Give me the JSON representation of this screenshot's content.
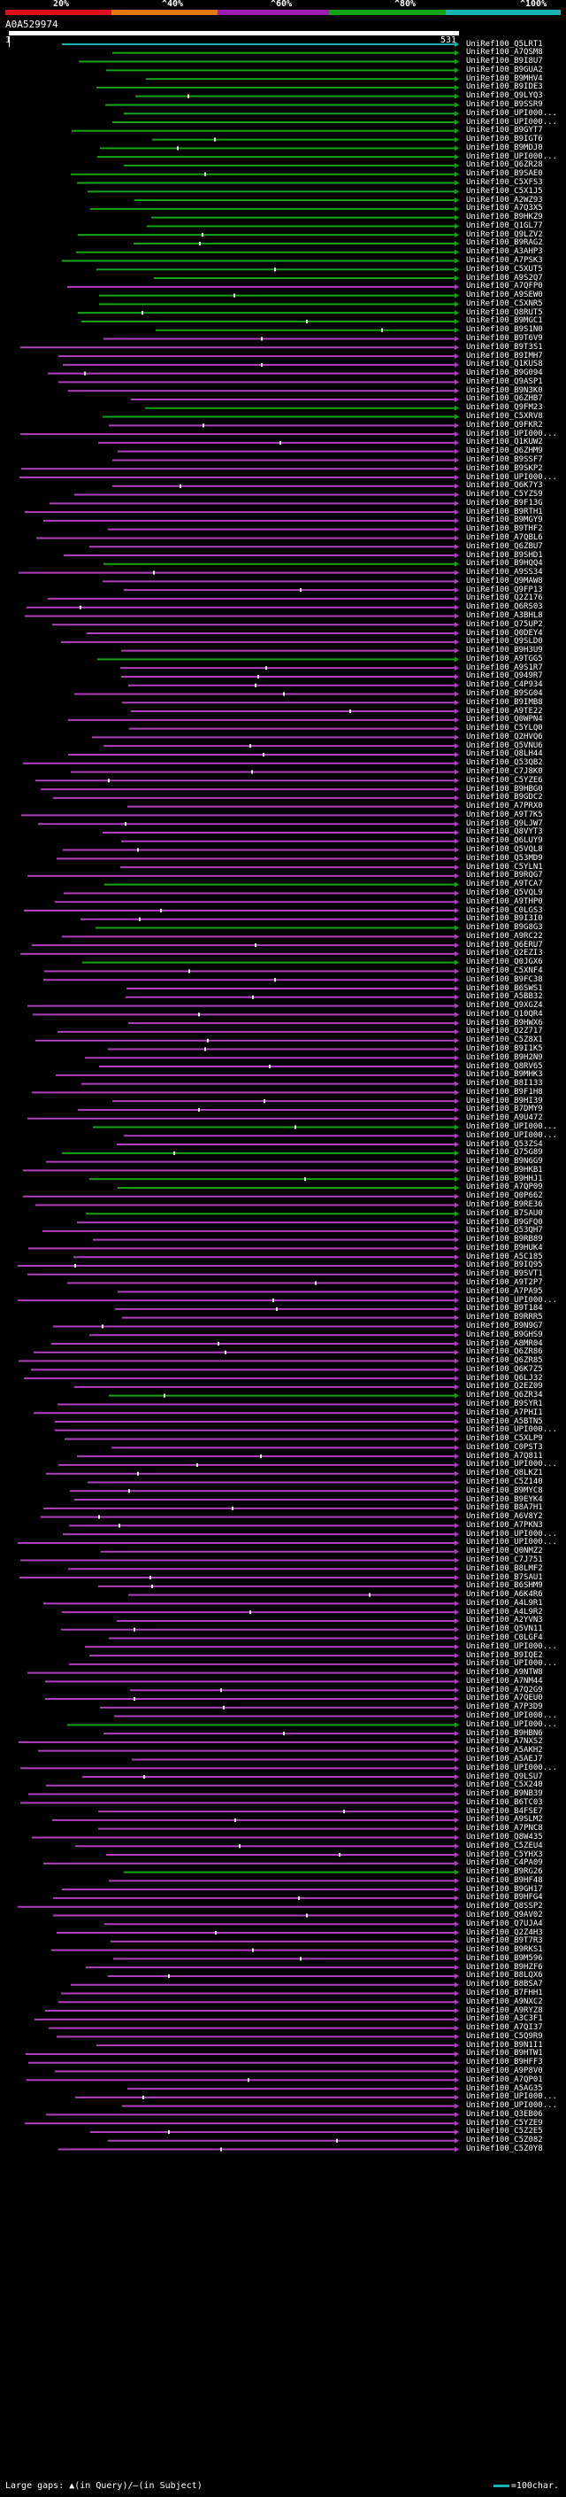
{
  "scale": {
    "labels": [
      "20%",
      "^40%",
      "^60%",
      "^80%",
      "^100%"
    ],
    "colors": [
      "#e0101a",
      "#e07a10",
      "#9a1fb0",
      "#13a313",
      "#19b3b3"
    ]
  },
  "query": {
    "id": "A0A529974",
    "start": "1",
    "end": "531"
  },
  "footer": {
    "text": "Large gaps: ▲(in Query)/—(in Subject)",
    "legend": "=100char."
  },
  "colors": {
    "identity_80": "#13a313",
    "identity_60": "#9a1fb0",
    "identity_100": "#19b3b3",
    "gap": "#ffffff"
  },
  "hits": [
    {
      "label": "UniRef100_Q5LRT1",
      "color": "cyan"
    },
    {
      "label": "UniRef100_A7QSM8",
      "color": "green"
    },
    {
      "label": "UniRef100_B9I8U7",
      "color": "green"
    },
    {
      "label": "UniRef100_B9GUA2",
      "color": "green"
    },
    {
      "label": "UniRef100_B9MHV4",
      "color": "green"
    },
    {
      "label": "UniRef100_B9IDE3",
      "color": "green"
    },
    {
      "label": "UniRef100_Q9LYQ3",
      "color": "green"
    },
    {
      "label": "UniRef100_B9SSR9",
      "color": "green"
    },
    {
      "label": "UniRef100_UPI000...",
      "color": "green"
    },
    {
      "label": "UniRef100_UPI000...",
      "color": "green"
    },
    {
      "label": "UniRef100_B9GYT7",
      "color": "green"
    },
    {
      "label": "UniRef100_B9IGT6",
      "color": "green"
    },
    {
      "label": "UniRef100_B9MDJ0",
      "color": "green"
    },
    {
      "label": "UniRef100_UPI000...",
      "color": "green"
    },
    {
      "label": "UniRef100_Q6ZR28",
      "color": "green"
    },
    {
      "label": "UniRef100_B9SAE0",
      "color": "green"
    },
    {
      "label": "UniRef100_C5XFS3",
      "color": "green"
    },
    {
      "label": "UniRef100_C5X1J5",
      "color": "green"
    },
    {
      "label": "UniRef100_A2WZ93",
      "color": "green"
    },
    {
      "label": "UniRef100_A7Q3X5",
      "color": "green"
    },
    {
      "label": "UniRef100_B9HKZ9",
      "color": "green"
    },
    {
      "label": "UniRef100_Q1GL77",
      "color": "green"
    },
    {
      "label": "UniRef100_Q9LZV2",
      "color": "green"
    },
    {
      "label": "UniRef100_B9RAG2",
      "color": "green"
    },
    {
      "label": "UniRef100_A3AHP3",
      "color": "green"
    },
    {
      "label": "UniRef100_A7PSK3",
      "color": "green"
    },
    {
      "label": "UniRef100_C5XUT5",
      "color": "green"
    },
    {
      "label": "UniRef100_A9S2Q7",
      "color": "green"
    },
    {
      "label": "UniRef100_A7QFP0",
      "color": "magenta"
    },
    {
      "label": "UniRef100_A9SEW0",
      "color": "green"
    },
    {
      "label": "UniRef100_C5XNR5",
      "color": "green"
    },
    {
      "label": "UniRef100_Q8RUT5",
      "color": "green"
    },
    {
      "label": "UniRef100_B9MGC1",
      "color": "green"
    },
    {
      "label": "UniRef100_B9S1N0",
      "color": "green"
    },
    {
      "label": "UniRef100_B9T6V9",
      "color": "magenta"
    },
    {
      "label": "UniRef100_B9T3S1",
      "color": "magenta"
    },
    {
      "label": "UniRef100_B9IMH7",
      "color": "magenta"
    },
    {
      "label": "UniRef100_Q1KUS8",
      "color": "magenta"
    },
    {
      "label": "UniRef100_B9G094",
      "color": "magenta"
    },
    {
      "label": "UniRef100_Q9ASP1",
      "color": "magenta"
    },
    {
      "label": "UniRef100_B9N3K0",
      "color": "magenta"
    },
    {
      "label": "UniRef100_Q6ZHB7",
      "color": "magenta"
    },
    {
      "label": "UniRef100_Q9FM23",
      "color": "green"
    },
    {
      "label": "UniRef100_C5XRV8",
      "color": "green"
    },
    {
      "label": "UniRef100_Q9FKR2",
      "color": "magenta"
    },
    {
      "label": "UniRef100_UPI000...",
      "color": "magenta"
    },
    {
      "label": "UniRef100_Q1KUW2",
      "color": "magenta"
    },
    {
      "label": "UniRef100_Q6ZHM9",
      "color": "magenta"
    },
    {
      "label": "UniRef100_B9SSF7",
      "color": "magenta"
    },
    {
      "label": "UniRef100_B9SKP2",
      "color": "magenta"
    },
    {
      "label": "UniRef100_UPI000...",
      "color": "magenta"
    },
    {
      "label": "UniRef100_Q6K7Y3",
      "color": "magenta"
    },
    {
      "label": "UniRef100_C5YZS9",
      "color": "magenta"
    },
    {
      "label": "UniRef100_B9F13G",
      "color": "magenta"
    },
    {
      "label": "UniRef100_B9RTH1",
      "color": "magenta"
    },
    {
      "label": "UniRef100_B9MGY9",
      "color": "magenta"
    },
    {
      "label": "UniRef100_B9THF2",
      "color": "magenta"
    },
    {
      "label": "UniRef100_A7QBL6",
      "color": "magenta"
    },
    {
      "label": "UniRef100_Q6ZBU7",
      "color": "magenta"
    },
    {
      "label": "UniRef100_B9SHD1",
      "color": "magenta"
    },
    {
      "label": "UniRef100_B9HQQ4",
      "color": "green"
    },
    {
      "label": "UniRef100_A9SS34",
      "color": "magenta"
    },
    {
      "label": "UniRef100_Q9MAW8",
      "color": "magenta"
    },
    {
      "label": "UniRef100_Q9FP13",
      "color": "magenta"
    },
    {
      "label": "UniRef100_Q2Z176",
      "color": "magenta"
    },
    {
      "label": "UniRef100_Q6RS03",
      "color": "magenta"
    },
    {
      "label": "UniRef100_A3BHL8",
      "color": "magenta"
    },
    {
      "label": "UniRef100_Q75UP2",
      "color": "magenta"
    },
    {
      "label": "UniRef100_Q0DEY4",
      "color": "magenta"
    },
    {
      "label": "UniRef100_Q9SLD0",
      "color": "magenta"
    },
    {
      "label": "UniRef100_B9H3U9",
      "color": "magenta"
    },
    {
      "label": "UniRef100_A9TGG5",
      "color": "green"
    },
    {
      "label": "UniRef100_A9S1R7",
      "color": "magenta"
    },
    {
      "label": "UniRef100_Q949R7",
      "color": "magenta"
    },
    {
      "label": "UniRef100_C4P934",
      "color": "magenta"
    },
    {
      "label": "UniRef100_B9SG04",
      "color": "magenta"
    },
    {
      "label": "UniRef100_B9IMB8",
      "color": "magenta"
    },
    {
      "label": "UniRef100_A9TE22",
      "color": "magenta"
    },
    {
      "label": "UniRef100_Q0WPN4",
      "color": "magenta"
    },
    {
      "label": "UniRef100_C5YLQ0",
      "color": "magenta"
    },
    {
      "label": "UniRef100_Q2HVQ6",
      "color": "magenta"
    },
    {
      "label": "UniRef100_Q5VNU6",
      "color": "magenta"
    },
    {
      "label": "UniRef100_Q8LH44",
      "color": "magenta"
    },
    {
      "label": "UniRef100_Q53QB2",
      "color": "magenta"
    },
    {
      "label": "UniRef100_C7J8K0",
      "color": "magenta"
    },
    {
      "label": "UniRef100_C5YZE6",
      "color": "magenta"
    },
    {
      "label": "UniRef100_B9HBG0",
      "color": "magenta"
    },
    {
      "label": "UniRef100_B9GDC2",
      "color": "magenta"
    },
    {
      "label": "UniRef100_A7PRX0",
      "color": "magenta"
    },
    {
      "label": "UniRef100_A9T7K5",
      "color": "magenta"
    },
    {
      "label": "UniRef100_Q9LJW7",
      "color": "magenta"
    },
    {
      "label": "UniRef100_Q8VYT3",
      "color": "magenta"
    },
    {
      "label": "UniRef100_Q6LUY9",
      "color": "magenta"
    },
    {
      "label": "UniRef100_Q5VQL8",
      "color": "magenta"
    },
    {
      "label": "UniRef100_Q53MD9",
      "color": "magenta"
    },
    {
      "label": "UniRef100_C5YLN1",
      "color": "magenta"
    },
    {
      "label": "UniRef100_B9RQG7",
      "color": "magenta"
    },
    {
      "label": "UniRef100_A9TCA7",
      "color": "green"
    },
    {
      "label": "UniRef100_Q5VQL9",
      "color": "magenta"
    },
    {
      "label": "UniRef100_A9THP0",
      "color": "magenta"
    },
    {
      "label": "UniRef100_C0LGS3",
      "color": "magenta"
    },
    {
      "label": "UniRef100_B9I3I0",
      "color": "magenta"
    },
    {
      "label": "UniRef100_B9G8G3",
      "color": "green"
    },
    {
      "label": "UniRef100_A9RC22",
      "color": "magenta"
    },
    {
      "label": "UniRef100_Q6ERU7",
      "color": "magenta"
    },
    {
      "label": "UniRef100_Q2EZI3",
      "color": "magenta"
    },
    {
      "label": "UniRef100_Q0JGX6",
      "color": "green"
    },
    {
      "label": "UniRef100_C5XNF4",
      "color": "magenta"
    },
    {
      "label": "UniRef100_B9FC38",
      "color": "magenta"
    },
    {
      "label": "UniRef100_B6SWS1",
      "color": "magenta"
    },
    {
      "label": "UniRef100_A5BB32",
      "color": "magenta"
    },
    {
      "label": "UniRef100_Q9XGZ4",
      "color": "magenta"
    },
    {
      "label": "UniRef100_Q10QR4",
      "color": "magenta"
    },
    {
      "label": "UniRef100_B9HWX6",
      "color": "magenta"
    },
    {
      "label": "UniRef100_Q2Z717",
      "color": "magenta"
    },
    {
      "label": "UniRef100_C5Z8X1",
      "color": "magenta"
    },
    {
      "label": "UniRef100_B9I1K5",
      "color": "magenta"
    },
    {
      "label": "UniRef100_B9H2N9",
      "color": "magenta"
    },
    {
      "label": "UniRef100_Q8RV65",
      "color": "magenta"
    },
    {
      "label": "UniRef100_B9MHK3",
      "color": "magenta"
    },
    {
      "label": "UniRef100_B8I133",
      "color": "magenta"
    },
    {
      "label": "UniRef100_B9F1H8",
      "color": "magenta"
    },
    {
      "label": "UniRef100_B9HI39",
      "color": "magenta"
    },
    {
      "label": "UniRef100_B7DMY9",
      "color": "magenta"
    },
    {
      "label": "UniRef100_A9U472",
      "color": "magenta"
    },
    {
      "label": "UniRef100_UPI000...",
      "color": "green"
    },
    {
      "label": "UniRef100_UPI000...",
      "color": "magenta"
    },
    {
      "label": "UniRef100_Q53ZS4",
      "color": "magenta"
    },
    {
      "label": "UniRef100_Q75G89",
      "color": "green"
    },
    {
      "label": "UniRef100_B9N6G9",
      "color": "magenta"
    },
    {
      "label": "UniRef100_B9HKB1",
      "color": "magenta"
    },
    {
      "label": "UniRef100_B9HHJ1",
      "color": "green"
    },
    {
      "label": "UniRef100_A7QP09",
      "color": "green"
    },
    {
      "label": "UniRef100_Q0P662",
      "color": "magenta"
    },
    {
      "label": "UniRef100_B9RE36",
      "color": "magenta"
    },
    {
      "label": "UniRef100_B7SAU0",
      "color": "green"
    },
    {
      "label": "UniRef100_B9GFQ0",
      "color": "magenta"
    },
    {
      "label": "UniRef100_Q53QH7",
      "color": "magenta"
    },
    {
      "label": "UniRef100_B9RB89",
      "color": "magenta"
    },
    {
      "label": "UniRef100_B9HUK4",
      "color": "magenta"
    },
    {
      "label": "UniRef100_A5C185",
      "color": "magenta"
    },
    {
      "label": "UniRef100_B9IQ95",
      "color": "magenta"
    },
    {
      "label": "UniRef100_B9SVT1",
      "color": "magenta"
    },
    {
      "label": "UniRef100_A9T2P7",
      "color": "magenta"
    },
    {
      "label": "UniRef100_A7PA95",
      "color": "magenta"
    },
    {
      "label": "UniRef100_UPI000...",
      "color": "magenta"
    },
    {
      "label": "UniRef100_B9T184",
      "color": "magenta"
    },
    {
      "label": "UniRef100_B9RRR5",
      "color": "magenta"
    },
    {
      "label": "UniRef100_B9N9G7",
      "color": "magenta"
    },
    {
      "label": "UniRef100_B9GHS9",
      "color": "magenta"
    },
    {
      "label": "UniRef100_A8MR04",
      "color": "magenta"
    },
    {
      "label": "UniRef100_Q6ZR86",
      "color": "magenta"
    },
    {
      "label": "UniRef100_Q6ZR85",
      "color": "magenta"
    },
    {
      "label": "UniRef100_Q6K7Z5",
      "color": "magenta"
    },
    {
      "label": "UniRef100_Q6LJ32",
      "color": "magenta"
    },
    {
      "label": "UniRef100_Q2EZ09",
      "color": "magenta"
    },
    {
      "label": "UniRef100_Q6ZR34",
      "color": "green"
    },
    {
      "label": "UniRef100_B9SYR1",
      "color": "magenta"
    },
    {
      "label": "UniRef100_A7PHI1",
      "color": "magenta"
    },
    {
      "label": "UniRef100_A5BTN5",
      "color": "magenta"
    },
    {
      "label": "UniRef100_UPI000...",
      "color": "magenta"
    },
    {
      "label": "UniRef100_C5XLP9",
      "color": "magenta"
    },
    {
      "label": "UniRef100_C0PST3",
      "color": "magenta"
    },
    {
      "label": "UniRef100_A7Q811",
      "color": "magenta"
    },
    {
      "label": "UniRef100_UPI000...",
      "color": "magenta"
    },
    {
      "label": "UniRef100_Q8LKZ1",
      "color": "magenta"
    },
    {
      "label": "UniRef100_C5Z140",
      "color": "magenta"
    },
    {
      "label": "UniRef100_B9MYC8",
      "color": "magenta"
    },
    {
      "label": "UniRef100_B9EYK4",
      "color": "magenta"
    },
    {
      "label": "UniRef100_B8A7H1",
      "color": "magenta"
    },
    {
      "label": "UniRef100_A6V8Y2",
      "color": "magenta"
    },
    {
      "label": "UniRef100_A7PKN3",
      "color": "magenta"
    },
    {
      "label": "UniRef100_UPI000...",
      "color": "magenta"
    },
    {
      "label": "UniRef100_UPI000...",
      "color": "magenta"
    },
    {
      "label": "UniRef100_Q0NMZ2",
      "color": "magenta"
    },
    {
      "label": "UniRef100_C7J751",
      "color": "magenta"
    },
    {
      "label": "UniRef100_B8LMF2",
      "color": "magenta"
    },
    {
      "label": "UniRef100_B7SAU1",
      "color": "magenta"
    },
    {
      "label": "UniRef100_B6SHM9",
      "color": "magenta"
    },
    {
      "label": "UniRef100_A6K4R6",
      "color": "magenta"
    },
    {
      "label": "UniRef100_A4L9R1",
      "color": "magenta"
    },
    {
      "label": "UniRef100_A4L9R2",
      "color": "magenta"
    },
    {
      "label": "UniRef100_A2YVN3",
      "color": "magenta"
    },
    {
      "label": "UniRef100_Q5VN11",
      "color": "magenta"
    },
    {
      "label": "UniRef100_C0LGF4",
      "color": "magenta"
    },
    {
      "label": "UniRef100_UPI000...",
      "color": "magenta"
    },
    {
      "label": "UniRef100_B9IQE2",
      "color": "magenta"
    },
    {
      "label": "UniRef100_UPI000...",
      "color": "magenta"
    },
    {
      "label": "UniRef100_A9NTW8",
      "color": "magenta"
    },
    {
      "label": "UniRef100_A7NM44",
      "color": "magenta"
    },
    {
      "label": "UniRef100_A7Q2G9",
      "color": "magenta"
    },
    {
      "label": "UniRef100_A7QEU0",
      "color": "magenta"
    },
    {
      "label": "UniRef100_A7P3D9",
      "color": "magenta"
    },
    {
      "label": "UniRef100_UPI000...",
      "color": "magenta"
    },
    {
      "label": "UniRef100_UPI000...",
      "color": "green"
    },
    {
      "label": "UniRef100_B9HBN6",
      "color": "magenta"
    },
    {
      "label": "UniRef100_A7NXS2",
      "color": "magenta"
    },
    {
      "label": "UniRef100_A5AKH2",
      "color": "magenta"
    },
    {
      "label": "UniRef100_A5AEJ7",
      "color": "magenta"
    },
    {
      "label": "UniRef100_UPI000...",
      "color": "magenta"
    },
    {
      "label": "UniRef100_Q9LSU7",
      "color": "magenta"
    },
    {
      "label": "UniRef100_C5X240",
      "color": "magenta"
    },
    {
      "label": "UniRef100_B9NB39",
      "color": "magenta"
    },
    {
      "label": "UniRef100_B6TC03",
      "color": "magenta"
    },
    {
      "label": "UniRef100_B4FSE7",
      "color": "magenta"
    },
    {
      "label": "UniRef100_A9SLM2",
      "color": "magenta"
    },
    {
      "label": "UniRef100_A7PNC8",
      "color": "magenta"
    },
    {
      "label": "UniRef100_Q8W435",
      "color": "magenta"
    },
    {
      "label": "UniRef100_C5ZEU4",
      "color": "magenta"
    },
    {
      "label": "UniRef100_C5YHX3",
      "color": "magenta"
    },
    {
      "label": "UniRef100_C4PA09",
      "color": "magenta"
    },
    {
      "label": "UniRef100_B9RG26",
      "color": "green"
    },
    {
      "label": "UniRef100_B9HF48",
      "color": "magenta"
    },
    {
      "label": "UniRef100_B9GH17",
      "color": "magenta"
    },
    {
      "label": "UniRef100_B9HFG4",
      "color": "magenta"
    },
    {
      "label": "UniRef100_Q8SSP2",
      "color": "magenta"
    },
    {
      "label": "UniRef100_Q9AV02",
      "color": "magenta"
    },
    {
      "label": "UniRef100_Q7UJA4",
      "color": "magenta"
    },
    {
      "label": "UniRef100_Q2Z4H3",
      "color": "magenta"
    },
    {
      "label": "UniRef100_B9T7R3",
      "color": "magenta"
    },
    {
      "label": "UniRef100_B9RKS1",
      "color": "magenta"
    },
    {
      "label": "UniRef100_B9M596",
      "color": "magenta"
    },
    {
      "label": "UniRef100_B9HZF6",
      "color": "magenta"
    },
    {
      "label": "UniRef100_B8LQX6",
      "color": "magenta"
    },
    {
      "label": "UniRef100_B8BSA7",
      "color": "magenta"
    },
    {
      "label": "UniRef100_B7FHH1",
      "color": "magenta"
    },
    {
      "label": "UniRef100_A9NXC2",
      "color": "magenta"
    },
    {
      "label": "UniRef100_A9RYZ8",
      "color": "magenta"
    },
    {
      "label": "UniRef100_A3C3F1",
      "color": "magenta"
    },
    {
      "label": "UniRef100_A7QI37",
      "color": "magenta"
    },
    {
      "label": "UniRef100_C5Q9R9",
      "color": "magenta"
    },
    {
      "label": "UniRef100_B9N1I1",
      "color": "magenta"
    },
    {
      "label": "UniRef100_B9HTW1",
      "color": "magenta"
    },
    {
      "label": "UniRef100_B9HFF3",
      "color": "magenta"
    },
    {
      "label": "UniRef100_A9P8V0",
      "color": "magenta"
    },
    {
      "label": "UniRef100_A7QP01",
      "color": "magenta"
    },
    {
      "label": "UniRef100_A5AG35",
      "color": "magenta"
    },
    {
      "label": "UniRef100_UPI000...",
      "color": "magenta"
    },
    {
      "label": "UniRef100_UPI000...",
      "color": "magenta"
    },
    {
      "label": "UniRef100_Q3EB06",
      "color": "magenta"
    },
    {
      "label": "UniRef100_C5YZE9",
      "color": "magenta"
    },
    {
      "label": "UniRef100_C5Z2E5",
      "color": "magenta"
    },
    {
      "label": "UniRef100_C5Z082",
      "color": "magenta"
    },
    {
      "label": "UniRef100_C5Z0Y8",
      "color": "magenta"
    }
  ]
}
